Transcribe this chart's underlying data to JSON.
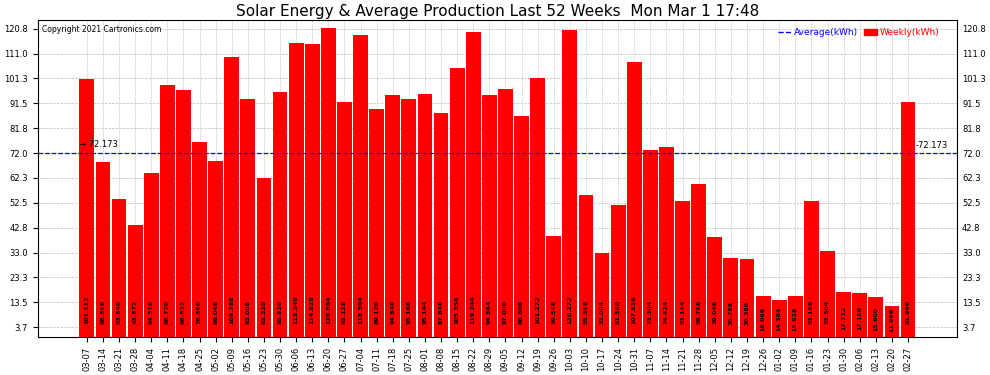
{
  "title": "Solar Energy & Average Production Last 52 Weeks  Mon Mar 1 17:48",
  "copyright": "Copyright 2021 Cartronics.com",
  "legend_avg": "Average(kWh)",
  "legend_weekly": "Weekly(kWh)",
  "average_line": 72.173,
  "ylim": [
    0,
    124
  ],
  "yticks": [
    3.7,
    13.5,
    23.3,
    33.0,
    42.8,
    52.5,
    62.3,
    72.0,
    81.8,
    91.5,
    101.3,
    111.0,
    120.8
  ],
  "bar_color": "#FF0000",
  "avg_line_color": "#0000FF",
  "background_color": "#FFFFFF",
  "grid_color": "#BBBBBB",
  "categories": [
    "03-07",
    "03-14",
    "03-21",
    "03-28",
    "04-04",
    "04-11",
    "04-18",
    "04-25",
    "05-02",
    "05-09",
    "05-16",
    "05-23",
    "05-30",
    "06-06",
    "06-13",
    "06-20",
    "06-27",
    "07-04",
    "07-11",
    "07-18",
    "07-25",
    "08-01",
    "08-08",
    "08-15",
    "08-22",
    "08-29",
    "09-05",
    "09-12",
    "09-19",
    "09-26",
    "10-03",
    "10-10",
    "10-17",
    "10-24",
    "10-31",
    "11-07",
    "11-14",
    "11-21",
    "11-28",
    "12-05",
    "12-12",
    "12-19",
    "12-26",
    "01-02",
    "01-09",
    "01-16",
    "01-23",
    "01-30",
    "02-06",
    "02-13",
    "02-20",
    "02-27"
  ],
  "values": [
    101.112,
    68.568,
    53.84,
    43.872,
    64.316,
    98.72,
    96.632,
    76.36,
    69.048,
    109.788,
    93.008,
    62.32,
    95.92,
    115.24,
    114.828,
    120.804,
    92.128,
    118.304,
    89.12,
    94.64,
    93.168,
    95.144,
    87.84,
    105.356,
    119.244,
    94.864,
    97.0,
    86.608,
    101.272,
    39.548,
    120.272,
    55.388,
    33.004,
    51.56,
    107.816,
    73.304,
    74.424,
    53.144,
    59.768,
    39.048,
    30.768,
    30.38,
    16.068,
    14.384,
    15.928,
    53.168,
    33.504,
    17.732,
    17.18,
    15.6,
    11.996,
    91.996
  ],
  "title_fontsize": 11,
  "tick_fontsize": 6,
  "bar_value_fontsize": 4.5,
  "avg_label_fontsize": 6
}
